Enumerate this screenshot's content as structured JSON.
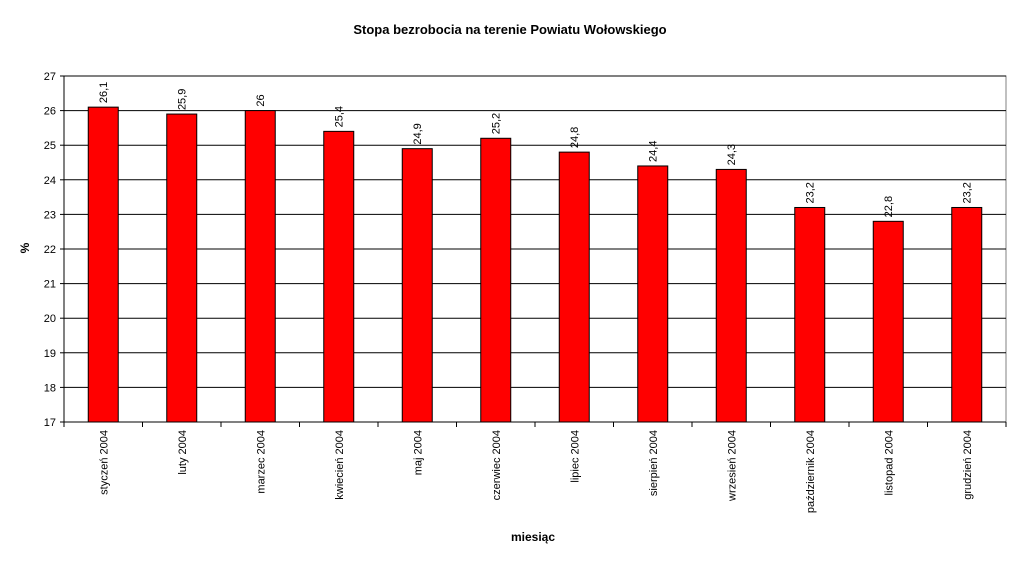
{
  "chart_data": {
    "type": "bar",
    "title": "Stopa bezrobocia na terenie Powiatu Wołowskiego",
    "x_label": "miesiąc",
    "y_label": "%",
    "categories": [
      "styczeń 2004",
      "luty 2004",
      "marzec 2004",
      "kwiecień 2004",
      "maj 2004",
      "czerwiec 2004",
      "lipiec 2004",
      "sierpień 2004",
      "wrzesień 2004",
      "październik 2004",
      "listopad 2004",
      "grudzień 2004"
    ],
    "values": [
      26.1,
      25.9,
      26,
      25.4,
      24.9,
      25.2,
      24.8,
      24.4,
      24.3,
      23.2,
      22.8,
      23.2
    ],
    "value_labels": [
      "26,1",
      "25,9",
      "26",
      "25,4",
      "24,9",
      "25,2",
      "24,8",
      "24,4",
      "24,3",
      "23,2",
      "22,8",
      "23,2"
    ],
    "color": "#ff0000",
    "ylim": [
      17,
      27
    ],
    "yticks": [
      17,
      18,
      19,
      20,
      21,
      22,
      23,
      24,
      25,
      26,
      27
    ],
    "grid": true
  }
}
